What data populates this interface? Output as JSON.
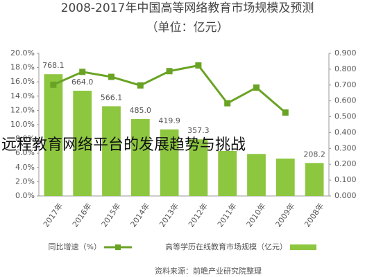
{
  "overlay_text": "远程教育网络平台的发展趋势与挑战",
  "chart_data": {
    "type": "bar-line",
    "title": "2008-2017年中国高等网络教育市场规模及预测",
    "subtitle": "（单位：亿元）",
    "source": "资料来源：前瞻产业研究院整理",
    "categories": [
      "2017年",
      "2016年",
      "2015年",
      "2014年",
      "2013年",
      "2012年",
      "2011年",
      "2010年",
      "2009年",
      "2008年"
    ],
    "series": [
      {
        "name": "高等学历在线教育市场规模（亿元）",
        "color": "#8dc63f",
        "axis": "y2",
        "values": [
          768.1,
          664.0,
          566.1,
          485.0,
          419.9,
          357.3,
          284,
          265,
          236,
          208.2
        ],
        "value_labels": [
          "768.1",
          "664.0",
          "566.1",
          "485.0",
          "419.9",
          "357.3",
          null,
          null,
          null,
          "208.2"
        ]
      },
      {
        "name": "同比增速（%）",
        "color": "#6aa324",
        "axis": "y",
        "values": [
          15.6,
          17.4,
          16.7,
          15.5,
          17.5,
          18.3,
          13.0,
          15.2,
          11.7,
          null
        ]
      }
    ],
    "ylim": [
      0,
      20
    ],
    "yticks": [
      {
        "value": 0,
        "label": "0.0%"
      },
      {
        "value": 2,
        "label": "2.0%"
      },
      {
        "value": 4,
        "label": "4.0%"
      },
      {
        "value": 6,
        "label": "6.0%"
      },
      {
        "value": 8,
        "label": "8.0%"
      },
      {
        "value": 10,
        "label": "10.0%"
      },
      {
        "value": 12,
        "label": "12.0%"
      },
      {
        "value": 14,
        "label": "14.0%"
      },
      {
        "value": 16,
        "label": "16.0%"
      },
      {
        "value": 18,
        "label": "18.0%"
      },
      {
        "value": 20,
        "label": "20.0%"
      }
    ],
    "y2lim": [
      0,
      900
    ],
    "y2ticks": [
      {
        "value": 0,
        "label": "0.000"
      },
      {
        "value": 100,
        "label": "0.100"
      },
      {
        "value": 200,
        "label": "0.200"
      },
      {
        "value": 300,
        "label": "0.300"
      },
      {
        "value": 400,
        "label": "0.400"
      },
      {
        "value": 500,
        "label": "0.500"
      },
      {
        "value": 600,
        "label": "0.600"
      },
      {
        "value": 700,
        "label": "0.700"
      },
      {
        "value": 800,
        "label": "0.800"
      },
      {
        "value": 900,
        "label": "0.900"
      }
    ]
  }
}
